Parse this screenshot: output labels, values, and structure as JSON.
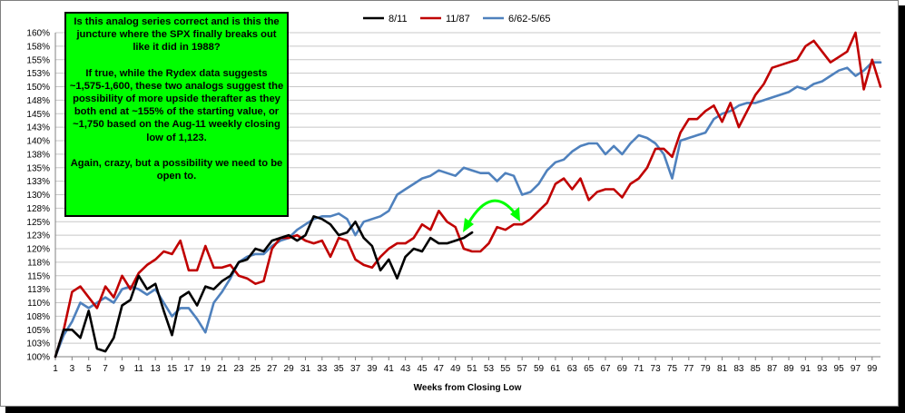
{
  "colors": {
    "series_8_11": "#000000",
    "series_11_87": "#c00000",
    "series_6_62": "#4f81bd",
    "annotation_bg": "#00ff00",
    "arrow": "#00ff00",
    "grid": "#c8c8c8"
  },
  "annotation": {
    "p1": "Is this analog series correct and is this the juncture where the SPX finally breaks out like it did in 1988?",
    "p2": "If true, while the Rydex data suggests ~1,575-1,600, these two analogs suggest the possibility of more upside therafter as they both end at ~155% of the starting value, or ~1,750 based on the Aug-11 weekly closing low of 1,123.",
    "p3": "Again, crazy, but a possibility we need to be open to."
  },
  "chart_data": {
    "type": "line",
    "xlabel": "Weeks from Closing Low",
    "ylabel": "",
    "x_ticks": [
      1,
      3,
      5,
      7,
      9,
      11,
      13,
      15,
      17,
      19,
      21,
      23,
      25,
      27,
      29,
      31,
      33,
      35,
      37,
      39,
      41,
      43,
      45,
      47,
      49,
      51,
      53,
      55,
      57,
      59,
      61,
      63,
      65,
      67,
      69,
      71,
      73,
      75,
      77,
      79,
      81,
      83,
      85,
      87,
      89,
      91,
      93,
      95,
      97,
      99
    ],
    "x_range": [
      1,
      100
    ],
    "y_ticks": [
      "100%",
      "103%",
      "105%",
      "108%",
      "110%",
      "113%",
      "115%",
      "118%",
      "120%",
      "123%",
      "125%",
      "128%",
      "130%",
      "133%",
      "135%",
      "138%",
      "140%",
      "143%",
      "145%",
      "148%",
      "150%",
      "153%",
      "155%",
      "158%",
      "160%"
    ],
    "ylim": [
      100,
      160
    ],
    "grid": true,
    "legend_position": "top",
    "series": [
      {
        "name": "8/11",
        "color": "#000000",
        "values": [
          100,
          105,
          105,
          103.5,
          108.5,
          101.5,
          101,
          103.5,
          109.5,
          110.5,
          115,
          112.5,
          113.5,
          108.5,
          104,
          111,
          112,
          109.5,
          113,
          112.5,
          114,
          115,
          117.5,
          118,
          120,
          119.5,
          121.5,
          122,
          122.5,
          121.5,
          122.5,
          126,
          125.5,
          124.5,
          122.5,
          123,
          125,
          122,
          120.5,
          116,
          118,
          114.5,
          118.5,
          120,
          119.5,
          122,
          121,
          121,
          121.5,
          122,
          123
        ]
      },
      {
        "name": "11/87",
        "color": "#c00000",
        "values": [
          100,
          105,
          112,
          113,
          111,
          109,
          113,
          111,
          115,
          112.5,
          115.5,
          117,
          118,
          119.5,
          119,
          121.5,
          116,
          116,
          120.5,
          116.5,
          116.5,
          117,
          115,
          114.5,
          113.5,
          114,
          120,
          122,
          122,
          122.5,
          121.5,
          121,
          121.5,
          118.5,
          122,
          121.5,
          118,
          117,
          116.5,
          118.5,
          120,
          121,
          121,
          122,
          124.5,
          123.5,
          127,
          125,
          124,
          120,
          119.5,
          119.5,
          121,
          124,
          123.5,
          124.5,
          124.5,
          125.5,
          127,
          128.5,
          132,
          133,
          131,
          133,
          129,
          130.5,
          131,
          131,
          129.5,
          132,
          133,
          135,
          138.5,
          138.5,
          137,
          141.5,
          144,
          144,
          145.5,
          146.5,
          143.5,
          147,
          142.5,
          145.5,
          148.5,
          150.5,
          153.5,
          154,
          154.5,
          155,
          157.5,
          158.5,
          156.5,
          154.5,
          155.5,
          156.5,
          160,
          149.5,
          155,
          150
        ]
      },
      {
        "name": "6/62-5/65",
        "color": "#4f81bd",
        "values": [
          100,
          104,
          106.5,
          110,
          109,
          110,
          111,
          110,
          112.5,
          113,
          112.5,
          111.5,
          112.5,
          110,
          107.5,
          109,
          109,
          107,
          104.5,
          110,
          112,
          114.5,
          117.5,
          118.5,
          119,
          119,
          120.5,
          121.5,
          122,
          123.5,
          124.5,
          125.5,
          126,
          126,
          126.5,
          125.5,
          122.5,
          125,
          125.5,
          126,
          127,
          130,
          131,
          132,
          133,
          133.5,
          134.5,
          134,
          133.5,
          135,
          134.5,
          134,
          134,
          132.5,
          134,
          133.5,
          130,
          130.5,
          132,
          134.5,
          136,
          136.5,
          138,
          139,
          139.5,
          139.5,
          137.5,
          139,
          137.5,
          139.5,
          141,
          140.5,
          139.5,
          137.5,
          133,
          140,
          140.5,
          141,
          141.5,
          144,
          145,
          145.5,
          146.5,
          147,
          147,
          147.5,
          148,
          148.5,
          149,
          150,
          149.5,
          150.5,
          151,
          152,
          153,
          153.5,
          152,
          153,
          154.5,
          154.5
        ]
      }
    ]
  }
}
